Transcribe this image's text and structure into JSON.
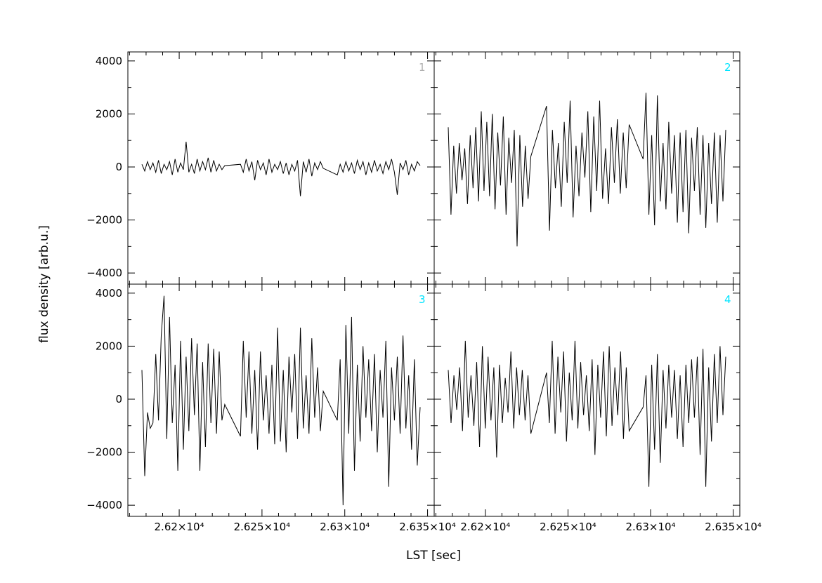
{
  "chart_data": {
    "type": "line",
    "layout": "2x2 grid of panels with shared axes",
    "xlabel": "LST [sec]",
    "ylabel": "flux density [arb.u.]",
    "xlim": [
      26169,
      26354
    ],
    "ylim": [
      -4420,
      4340
    ],
    "x_ticks": [
      26200,
      26250,
      26300,
      26350
    ],
    "x_tick_labels": [
      "2.62×10⁴",
      "2.625×10⁴",
      "2.63×10⁴",
      "2.635×10⁴"
    ],
    "x_minor_step": 10,
    "y_ticks": [
      -4000,
      -2000,
      0,
      2000,
      4000
    ],
    "y_tick_labels": [
      "−4000",
      "−2000",
      "0",
      "2000",
      "4000"
    ],
    "y_minor_step": 1000,
    "grid": false,
    "line_color": "#000000",
    "panels": [
      {
        "label": "1",
        "label_color": "#b0b0b0",
        "segments": [
          {
            "x_start": 26177.5,
            "x_end": 26227.5,
            "y": [
              100,
              -150,
              200,
              -100,
              150,
              -200,
              250,
              -250,
              100,
              -100,
              200,
              -300,
              300,
              -200,
              150,
              -100,
              950,
              -200,
              100,
              -250,
              300,
              -150,
              200,
              -100,
              350,
              -200,
              250,
              -150,
              100,
              -100,
              50
            ]
          },
          {
            "x_start": 26237,
            "x_end": 26287,
            "y": [
              100,
              -200,
              300,
              -150,
              200,
              -500,
              250,
              -100,
              150,
              -300,
              300,
              -200,
              100,
              -100,
              200,
              -250,
              150,
              -300,
              100,
              -150,
              250,
              -1100,
              200,
              -200,
              300,
              -350,
              150,
              -100,
              200,
              -50
            ]
          },
          {
            "x_start": 26295.5,
            "x_end": 26345.5,
            "y": [
              -300,
              100,
              -200,
              200,
              -150,
              150,
              -250,
              250,
              -100,
              200,
              -300,
              150,
              -200,
              250,
              -150,
              100,
              -250,
              200,
              -100,
              300,
              -200,
              -1050,
              150,
              -100,
              250,
              -300,
              100,
              -150,
              200,
              50
            ]
          }
        ]
      },
      {
        "label": "2",
        "label_color": "#00e5ff",
        "segments": [
          {
            "x_start": 26177.5,
            "x_end": 26227.5,
            "y": [
              1500,
              -1800,
              800,
              -1000,
              900,
              -500,
              700,
              -1400,
              1200,
              -800,
              1500,
              -1300,
              2100,
              -900,
              1700,
              -1100,
              2000,
              -1600,
              1300,
              -700,
              1900,
              -1800,
              1100,
              -600,
              1400,
              -3000,
              1200,
              -1500,
              800,
              -1200,
              400
            ]
          },
          {
            "x_start": 26237,
            "x_end": 26287,
            "y": [
              2300,
              -2400,
              1400,
              -800,
              900,
              -1500,
              1700,
              -600,
              2500,
              -1900,
              800,
              -1100,
              1300,
              -400,
              2100,
              -1700,
              1900,
              -900,
              2500,
              -1200,
              700,
              -1400,
              1500,
              -600,
              1800,
              -1000,
              1300,
              -800,
              1600
            ]
          },
          {
            "x_start": 26295.5,
            "x_end": 26345.5,
            "y": [
              300,
              2800,
              -1800,
              1200,
              -2200,
              2700,
              -1300,
              900,
              -1600,
              1700,
              -1000,
              1200,
              -2100,
              1300,
              -1700,
              1400,
              -2500,
              1100,
              -900,
              1500,
              -1800,
              1200,
              -2300,
              900,
              -1400,
              1300,
              -2100,
              1200,
              -1300,
              1400
            ]
          }
        ]
      },
      {
        "label": "3",
        "label_color": "#00e5ff",
        "segments": [
          {
            "x_start": 26177.5,
            "x_end": 26227.5,
            "y": [
              1100,
              -2900,
              -500,
              -1100,
              -900,
              1700,
              -800,
              2400,
              3900,
              -1500,
              3100,
              -900,
              1300,
              -2700,
              2200,
              -1900,
              1600,
              -1200,
              2300,
              -600,
              2100,
              -2700,
              1400,
              -1800,
              2100,
              -900,
              1900,
              -1300,
              1800,
              -800,
              -200
            ]
          },
          {
            "x_start": 26237,
            "x_end": 26287,
            "y": [
              -1400,
              2200,
              -700,
              1800,
              -1300,
              1100,
              -1900,
              1800,
              -800,
              900,
              -1300,
              1300,
              -1700,
              2700,
              -1600,
              1100,
              -2000,
              1600,
              -500,
              1700,
              -1500,
              2700,
              -1100,
              900,
              -1300,
              2300,
              -700,
              1200,
              -1200,
              300
            ]
          },
          {
            "x_start": 26295.5,
            "x_end": 26345.5,
            "y": [
              -800,
              1500,
              -4000,
              2800,
              -1300,
              3100,
              -2700,
              1300,
              -1600,
              2000,
              -700,
              1500,
              -1200,
              1700,
              -2000,
              1100,
              -700,
              2200,
              -3300,
              1200,
              -800,
              1600,
              -1300,
              2400,
              -1100,
              900,
              -1900,
              1500,
              -2500,
              -300
            ]
          }
        ]
      },
      {
        "label": "4",
        "label_color": "#00e5ff",
        "segments": [
          {
            "x_start": 26177.5,
            "x_end": 26227.5,
            "y": [
              1100,
              -900,
              900,
              -400,
              1200,
              -1200,
              2200,
              -700,
              900,
              -1000,
              1400,
              -1800,
              2000,
              -1100,
              1600,
              -800,
              1200,
              -2200,
              1300,
              -900,
              800,
              -500,
              1800,
              -1100,
              1200,
              -600,
              1100,
              -800,
              900,
              -1300
            ]
          },
          {
            "x_start": 26237,
            "x_end": 26287,
            "y": [
              1000,
              -900,
              2200,
              -1300,
              1600,
              -500,
              1800,
              -1600,
              1000,
              -800,
              2200,
              -1100,
              1400,
              -600,
              900,
              -1200,
              1500,
              -2100,
              1300,
              -700,
              1800,
              -1400,
              2000,
              -1000,
              1200,
              -600,
              1800,
              -1500,
              1200,
              -1200
            ]
          },
          {
            "x_start": 26295.5,
            "x_end": 26345.5,
            "y": [
              -300,
              900,
              -3300,
              1300,
              -1900,
              1700,
              -2400,
              1100,
              -1100,
              1300,
              -700,
              1100,
              -1500,
              900,
              -1800,
              1300,
              -900,
              1500,
              -700,
              1600,
              -2100,
              1900,
              -3300,
              1200,
              -1600,
              1700,
              -900,
              2000,
              -600,
              1600
            ]
          }
        ]
      }
    ]
  }
}
